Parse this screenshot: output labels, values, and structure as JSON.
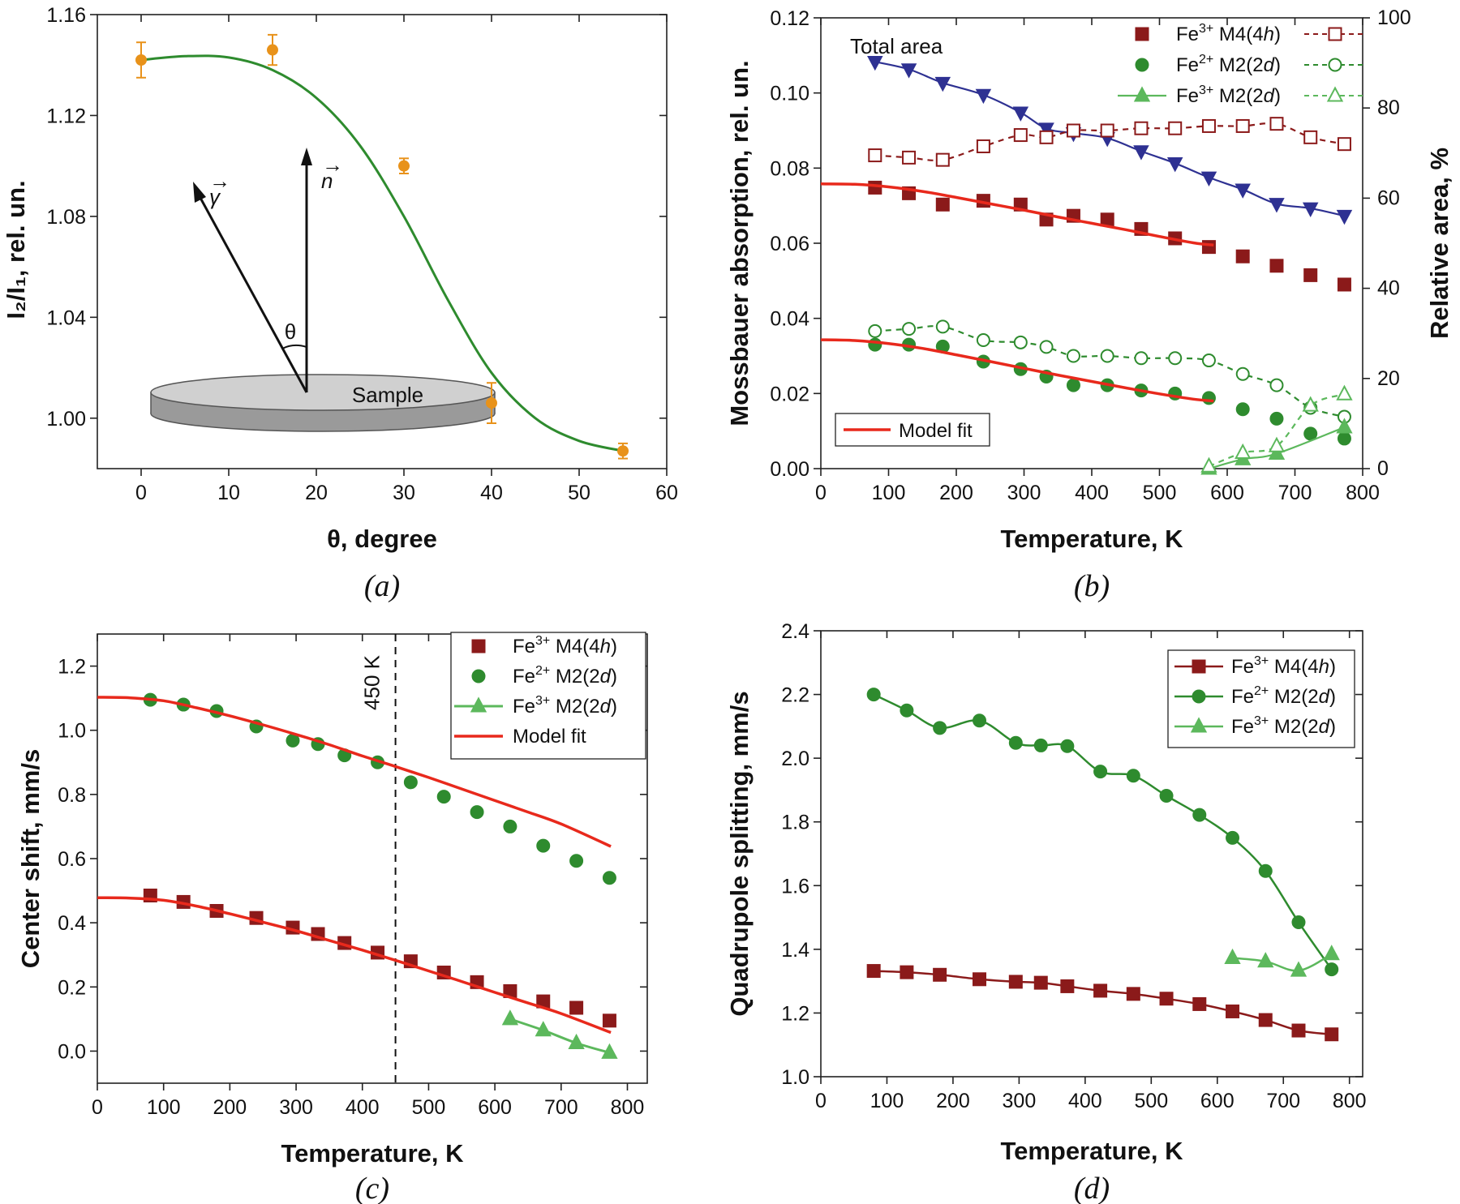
{
  "chart_data": [
    {
      "panel": "(a)",
      "type": "scatter",
      "xlabel": "θ, degree",
      "ylabel": "I₂/I₁, rel. un.",
      "xlim": [
        -5,
        60
      ],
      "ylim": [
        0.98,
        1.16
      ],
      "xticks": [
        0,
        10,
        20,
        30,
        40,
        50,
        60
      ],
      "yticks": [
        1.0,
        1.04,
        1.08,
        1.12,
        1.16
      ],
      "series": [
        {
          "kind": "points_with_error",
          "color": "#e8921a",
          "x": [
            0,
            15,
            30,
            40,
            55
          ],
          "y": [
            1.142,
            1.146,
            1.1,
            1.006,
            0.987
          ],
          "err": [
            0.007,
            0.006,
            0.003,
            0.008,
            0.003
          ]
        },
        {
          "kind": "fit_curve",
          "color": "#2e8b2e",
          "x": [
            0,
            5,
            10,
            15,
            20,
            25,
            30,
            35,
            40,
            45,
            50,
            55
          ],
          "y": [
            1.142,
            1.1435,
            1.143,
            1.138,
            1.127,
            1.108,
            1.08,
            1.047,
            1.018,
            1.0,
            0.991,
            0.987
          ]
        }
      ],
      "inset": {
        "sample": "Sample",
        "theta": "θ",
        "gamma": "γ",
        "n": "n"
      }
    },
    {
      "panel": "(b)",
      "type": "scatter",
      "xlabel": "Temperature, K",
      "ylabel": "Mossbauer absorption, rel. un.",
      "y2label": "Relative area, %",
      "xlim": [
        0,
        800
      ],
      "ylim": [
        0,
        0.12
      ],
      "y2lim": [
        0,
        100
      ],
      "xticks": [
        0,
        100,
        200,
        300,
        400,
        500,
        600,
        700,
        800
      ],
      "yticks": [
        0.0,
        0.02,
        0.04,
        0.06,
        0.08,
        0.1,
        0.12
      ],
      "y2ticks": [
        0,
        20,
        40,
        60,
        80,
        100
      ],
      "annotation": "Total area",
      "series": [
        {
          "name": "Total area",
          "axis": "left",
          "marker": "triangle-down",
          "color": "#2e3192",
          "line": true,
          "x": [
            80,
            130,
            180,
            240,
            295,
            333,
            373,
            423,
            473,
            523,
            573,
            623,
            673,
            723,
            773
          ],
          "y": [
            0.1083,
            0.1063,
            0.1027,
            0.0995,
            0.0948,
            0.0905,
            0.0893,
            0.088,
            0.0845,
            0.0813,
            0.0775,
            0.0743,
            0.0705,
            0.0693,
            0.0673
          ]
        },
        {
          "name": "Fe³⁺ M4(4h)",
          "axis": "left",
          "marker": "square",
          "color": "#8b1a1a",
          "x": [
            80,
            130,
            180,
            240,
            295,
            333,
            373,
            423,
            473,
            523,
            573,
            623,
            673,
            723,
            773
          ],
          "y": [
            0.0748,
            0.0733,
            0.0703,
            0.0713,
            0.0703,
            0.0663,
            0.0673,
            0.0663,
            0.0638,
            0.0613,
            0.059,
            0.0565,
            0.054,
            0.0515,
            0.049
          ]
        },
        {
          "name": "Fe³⁺ M4(4h) relative",
          "axis": "right",
          "marker": "square-open",
          "color": "#8b1a1a",
          "line": "dashed",
          "x": [
            80,
            130,
            180,
            240,
            295,
            333,
            373,
            423,
            473,
            523,
            573,
            623,
            673,
            723,
            773
          ],
          "y": [
            69.5,
            69.0,
            68.5,
            71.5,
            74.0,
            73.5,
            75.0,
            75.0,
            75.5,
            75.5,
            76.0,
            76.0,
            76.5,
            73.5,
            72.0
          ]
        },
        {
          "name": "Fe²⁺ M2(2d)",
          "axis": "left",
          "marker": "circle",
          "color": "#2e8b2e",
          "x": [
            80,
            130,
            180,
            240,
            295,
            333,
            373,
            423,
            473,
            523,
            573,
            623,
            673,
            723,
            773
          ],
          "y": [
            0.033,
            0.033,
            0.0325,
            0.0285,
            0.0265,
            0.0245,
            0.0222,
            0.0222,
            0.0208,
            0.02,
            0.0188,
            0.0158,
            0.0133,
            0.0093,
            0.008
          ]
        },
        {
          "name": "Fe²⁺ M2(2d) relative",
          "axis": "right",
          "marker": "circle-open",
          "color": "#2e8b2e",
          "line": "dashed",
          "x": [
            80,
            130,
            180,
            240,
            295,
            333,
            373,
            423,
            473,
            523,
            573,
            623,
            673,
            723,
            773
          ],
          "y": [
            30.5,
            31.0,
            31.5,
            28.5,
            28.0,
            27.0,
            25.0,
            25.0,
            24.5,
            24.5,
            24.0,
            21.0,
            18.5,
            13.5,
            11.5
          ]
        },
        {
          "name": "Fe³⁺ M2(2d)",
          "axis": "left",
          "marker": "triangle-up",
          "color": "#5cb85c",
          "line": true,
          "x": [
            573,
            623,
            673,
            773
          ],
          "y": [
            0.0,
            0.0025,
            0.004,
            0.011
          ]
        },
        {
          "name": "Fe³⁺ M2(2d) relative",
          "axis": "right",
          "marker": "triangle-up-open",
          "color": "#5cb85c",
          "line": "dashed",
          "x": [
            573,
            623,
            673,
            723,
            773
          ],
          "y": [
            0.5,
            3.5,
            5.0,
            14.0,
            16.5
          ]
        },
        {
          "name": "Model fit (upper)",
          "axis": "left",
          "color": "#e8291c",
          "kind": "fit",
          "x": [
            0,
            50,
            100,
            150,
            200,
            250,
            300,
            350,
            400,
            450,
            500,
            550,
            580
          ],
          "y": [
            0.0758,
            0.0757,
            0.075,
            0.0738,
            0.0722,
            0.0705,
            0.0688,
            0.067,
            0.0653,
            0.0636,
            0.0618,
            0.0601,
            0.0595
          ]
        },
        {
          "name": "Model fit (lower)",
          "axis": "left",
          "color": "#e8291c",
          "kind": "fit",
          "x": [
            0,
            50,
            100,
            150,
            200,
            250,
            300,
            350,
            400,
            450,
            500,
            550,
            580
          ],
          "y": [
            0.0343,
            0.0341,
            0.0333,
            0.032,
            0.0303,
            0.0285,
            0.0267,
            0.0249,
            0.0232,
            0.0215,
            0.0199,
            0.0185,
            0.018
          ]
        }
      ],
      "legend": [
        {
          "label_parts": [
            "Fe",
            "3+",
            " M4(4",
            "h",
            ")"
          ],
          "marker": "square",
          "color": "#8b1a1a"
        },
        {
          "label_parts": [
            "Fe",
            "2+",
            " M2(2",
            "d",
            ")"
          ],
          "marker": "circle",
          "color": "#2e8b2e"
        },
        {
          "label_parts": [
            "Fe",
            "3+",
            " M2(2",
            "d",
            ")"
          ],
          "marker": "triangle-up",
          "color": "#5cb85c"
        }
      ],
      "legend2": "Model fit"
    },
    {
      "panel": "(c)",
      "type": "scatter",
      "xlabel": "Temperature, K",
      "ylabel": "Center shift, mm/s",
      "xlim": [
        0,
        830
      ],
      "ylim": [
        -0.1,
        1.3
      ],
      "xticks": [
        0,
        100,
        200,
        300,
        400,
        500,
        600,
        700,
        800
      ],
      "yticks": [
        0.0,
        0.2,
        0.4,
        0.6,
        0.8,
        1.0,
        1.2
      ],
      "vline": {
        "x": 450,
        "label": "450 K"
      },
      "series": [
        {
          "name": "Fe³⁺ M4(4h)",
          "marker": "square",
          "color": "#8b1a1a",
          "x": [
            80,
            130,
            180,
            240,
            295,
            333,
            373,
            423,
            473,
            523,
            573,
            623,
            673,
            723,
            773
          ],
          "y": [
            0.485,
            0.465,
            0.437,
            0.415,
            0.385,
            0.365,
            0.337,
            0.307,
            0.28,
            0.245,
            0.215,
            0.187,
            0.155,
            0.135,
            0.095
          ]
        },
        {
          "name": "Fe²⁺ M2(2d)",
          "marker": "circle",
          "color": "#2e8b2e",
          "x": [
            80,
            130,
            180,
            240,
            295,
            333,
            373,
            423,
            473,
            523,
            573,
            623,
            673,
            723,
            773
          ],
          "y": [
            1.095,
            1.08,
            1.06,
            1.012,
            0.968,
            0.957,
            0.922,
            0.9,
            0.838,
            0.793,
            0.745,
            0.7,
            0.64,
            0.593,
            0.54
          ]
        },
        {
          "name": "Fe³⁺ M2(2d)",
          "marker": "triangle-up",
          "color": "#5cb85c",
          "line": true,
          "x": [
            623,
            673,
            723,
            773
          ],
          "y": [
            0.1,
            0.065,
            0.025,
            -0.005
          ]
        },
        {
          "name": "Model fit (upper)",
          "color": "#e8291c",
          "kind": "fit",
          "x": [
            0,
            50,
            100,
            150,
            200,
            250,
            300,
            350,
            400,
            450,
            500,
            550,
            600,
            650,
            700,
            775
          ],
          "y": [
            1.103,
            1.101,
            1.092,
            1.07,
            1.045,
            1.017,
            0.987,
            0.955,
            0.92,
            0.887,
            0.853,
            0.817,
            0.781,
            0.745,
            0.708,
            0.638
          ]
        },
        {
          "name": "Model fit (lower)",
          "color": "#e8291c",
          "kind": "fit",
          "x": [
            0,
            50,
            100,
            150,
            200,
            250,
            300,
            350,
            400,
            450,
            500,
            550,
            600,
            650,
            700,
            775
          ],
          "y": [
            0.478,
            0.477,
            0.47,
            0.452,
            0.428,
            0.402,
            0.375,
            0.345,
            0.315,
            0.283,
            0.25,
            0.217,
            0.183,
            0.15,
            0.117,
            0.058
          ]
        }
      ],
      "legend": [
        {
          "label_parts": [
            "Fe",
            "3+",
            " M4(4",
            "h",
            ")"
          ],
          "marker": "square",
          "color": "#8b1a1a"
        },
        {
          "label_parts": [
            "Fe",
            "2+",
            " M2(2",
            "d",
            ")"
          ],
          "marker": "circle",
          "color": "#2e8b2e"
        },
        {
          "label_parts": [
            "Fe",
            "3+",
            " M2(2",
            "d",
            ")"
          ],
          "marker": "triangle-up-line",
          "color": "#5cb85c"
        },
        {
          "label_parts": [
            "Model fit",
            "",
            "",
            "",
            ""
          ],
          "marker": "line",
          "color": "#e8291c"
        }
      ]
    },
    {
      "panel": "(d)",
      "type": "line",
      "xlabel": "Temperature, K",
      "ylabel": "Quadrupole splitting, mm/s",
      "xlim": [
        0,
        820
      ],
      "ylim": [
        1.0,
        2.4
      ],
      "xticks": [
        0,
        100,
        200,
        300,
        400,
        500,
        600,
        700,
        800
      ],
      "yticks": [
        1.0,
        1.2,
        1.4,
        1.6,
        1.8,
        2.0,
        2.2,
        2.4
      ],
      "series": [
        {
          "name": "Fe³⁺ M4(4h)",
          "marker": "square",
          "color": "#8b1a1a",
          "x": [
            80,
            130,
            180,
            240,
            295,
            333,
            373,
            423,
            473,
            523,
            573,
            623,
            673,
            723,
            773
          ],
          "y": [
            1.332,
            1.328,
            1.32,
            1.306,
            1.298,
            1.295,
            1.284,
            1.27,
            1.26,
            1.245,
            1.228,
            1.205,
            1.178,
            1.145,
            1.133
          ]
        },
        {
          "name": "Fe²⁺ M2(2d)",
          "marker": "circle",
          "color": "#2e8b2e",
          "x": [
            80,
            130,
            180,
            240,
            295,
            333,
            373,
            423,
            473,
            523,
            573,
            623,
            673,
            723,
            773
          ],
          "y": [
            2.2,
            2.15,
            2.095,
            2.118,
            2.048,
            2.04,
            2.038,
            1.958,
            1.945,
            1.882,
            1.822,
            1.75,
            1.646,
            1.485,
            1.337
          ]
        },
        {
          "name": "Fe³⁺ M2(2d)",
          "marker": "triangle-up",
          "color": "#5cb85c",
          "x": [
            623,
            673,
            723,
            773
          ],
          "y": [
            1.373,
            1.362,
            1.333,
            1.385
          ]
        }
      ],
      "legend": [
        {
          "label_parts": [
            "Fe",
            "3+",
            " M4(4",
            "h",
            ")"
          ],
          "marker": "square-line",
          "color": "#8b1a1a"
        },
        {
          "label_parts": [
            "Fe",
            "2+",
            " M2(2",
            "d",
            ")"
          ],
          "marker": "circle-line",
          "color": "#2e8b2e"
        },
        {
          "label_parts": [
            "Fe",
            "3+",
            " M2(2",
            "d",
            ")"
          ],
          "marker": "triangle-up-line",
          "color": "#5cb85c"
        }
      ]
    }
  ]
}
